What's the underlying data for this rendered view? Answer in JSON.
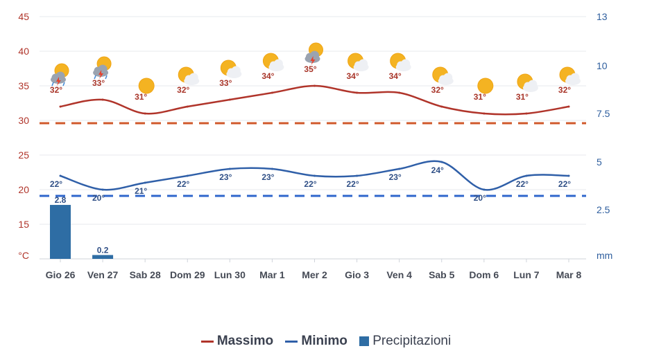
{
  "chart_data": {
    "type": "line",
    "categories": [
      "Gio 26",
      "Ven 27",
      "Sab 28",
      "Dom 29",
      "Lun 30",
      "Mar 1",
      "Mer 2",
      "Gio 3",
      "Ven 4",
      "Sab 5",
      "Dom 6",
      "Lun 7",
      "Mar 8"
    ],
    "series": [
      {
        "name": "Massimo",
        "type": "line",
        "axis": "left",
        "color": "#b0342a",
        "values": [
          32,
          33,
          31,
          32,
          33,
          34,
          35,
          34,
          34,
          32,
          31,
          31,
          32
        ],
        "labels": [
          "32°",
          "33°",
          "31°",
          "32°",
          "33°",
          "34°",
          "35°",
          "34°",
          "34°",
          "32°",
          "31°",
          "31°",
          "32°"
        ]
      },
      {
        "name": "Minimo",
        "type": "line",
        "axis": "left",
        "color": "#2f5fa8",
        "values": [
          22,
          20,
          21,
          22,
          23,
          23,
          22,
          22,
          23,
          24,
          20,
          22,
          22
        ],
        "labels": [
          "22°",
          "20°",
          "21°",
          "22°",
          "23°",
          "23°",
          "22°",
          "22°",
          "23°",
          "24°",
          "20°",
          "22°",
          "22°"
        ]
      },
      {
        "name": "Precipitazioni",
        "type": "bar",
        "axis": "right",
        "color": "#2e6da4",
        "values": [
          2.8,
          0.2,
          0,
          0,
          0,
          0,
          0,
          0,
          0,
          0,
          0,
          0,
          0
        ],
        "labels": [
          "2.8",
          "0.2",
          "",
          "",
          "",
          "",
          "",
          "",
          "",
          "",
          "",
          "",
          ""
        ]
      }
    ],
    "reference_lines": [
      {
        "axis": "left",
        "value": 29.6,
        "color": "#d0592b",
        "style": "dashed"
      },
      {
        "axis": "left",
        "value": 19.1,
        "color": "#2f66cc",
        "style": "dashed"
      }
    ],
    "y_left": {
      "ticks": [
        "45",
        "40",
        "35",
        "30",
        "25",
        "20",
        "15"
      ],
      "ylim": [
        10,
        45
      ],
      "unit_label": "°C"
    },
    "y_right": {
      "ticks": [
        "13",
        "10",
        "7.5",
        "5",
        "2.5"
      ],
      "unit_label": "mm"
    },
    "icons": [
      "storm-partly-cloudy-icon",
      "storm-partly-cloudy-icon",
      "sun-icon",
      "partly-cloudy-icon",
      "partly-cloudy-icon",
      "partly-cloudy-icon",
      "storm-partly-cloudy-icon",
      "partly-cloudy-icon",
      "partly-cloudy-icon",
      "partly-cloudy-icon",
      "sun-icon",
      "partly-cloudy-icon",
      "partly-cloudy-icon"
    ],
    "grid": true,
    "legend_position": "bottom-center"
  },
  "legend": {
    "massimo": "Massimo",
    "minimo": "Minimo",
    "precipitazioni": "Precipitazioni"
  }
}
